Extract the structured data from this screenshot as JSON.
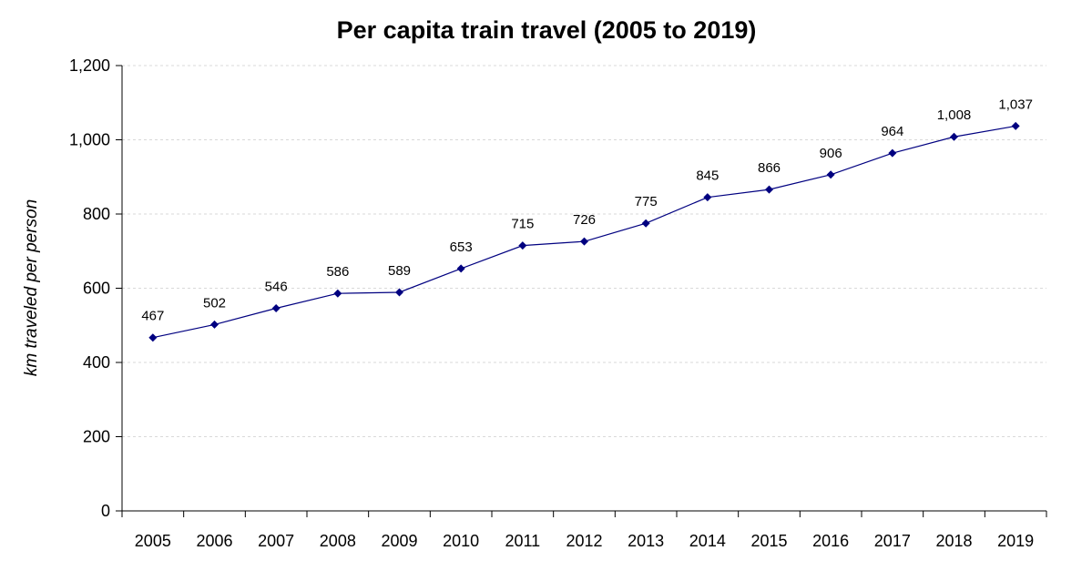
{
  "chart_data": {
    "type": "line",
    "title": "Per capita train travel (2005 to 2019)",
    "xlabel": "",
    "ylabel": "km traveled per person",
    "categories": [
      "2005",
      "2006",
      "2007",
      "2008",
      "2009",
      "2010",
      "2011",
      "2012",
      "2013",
      "2014",
      "2015",
      "2016",
      "2017",
      "2018",
      "2019"
    ],
    "series": [
      {
        "values": [
          467,
          502,
          546,
          586,
          589,
          653,
          715,
          726,
          775,
          845,
          866,
          906,
          964,
          1008,
          1037
        ],
        "data_labels": [
          "467",
          "502",
          "546",
          "586",
          "589",
          "653",
          "715",
          "726",
          "775",
          "845",
          "866",
          "906",
          "964",
          "1,008",
          "1,037"
        ],
        "color": "#000080"
      }
    ],
    "ylim": [
      0,
      1200
    ],
    "yticks": [
      0,
      200,
      400,
      600,
      800,
      1000,
      1200
    ],
    "ytick_labels": [
      "0",
      "200",
      "400",
      "600",
      "800",
      "1,000",
      "1,200"
    ],
    "grid": "horizontal dashed",
    "legend": "none"
  }
}
